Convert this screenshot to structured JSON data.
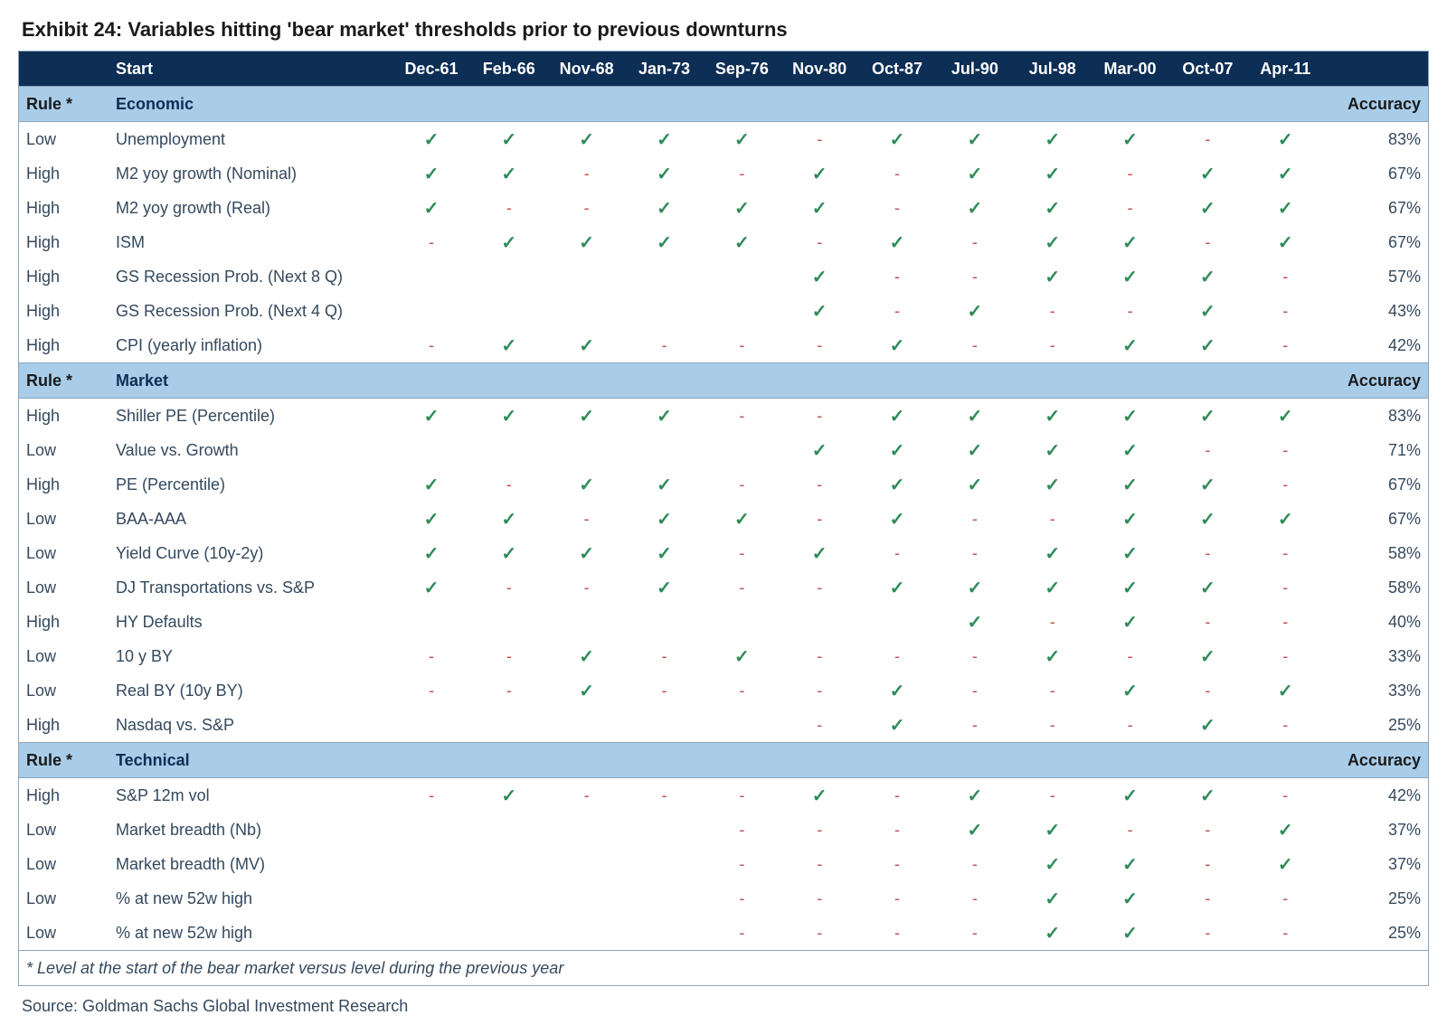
{
  "title": "Exhibit 24: Variables hitting 'bear market' thresholds prior to previous downturns",
  "footnote": "* Level at the start of the bear market versus level during the previous year",
  "source": "Source: Goldman Sachs Global Investment Research",
  "colors": {
    "header_bg": "#0d2e55",
    "header_fg": "#ffffff",
    "section_bg": "#a9cde9",
    "section_fg": "#0d2e55",
    "text": "#34495e",
    "check": "#2e8b57",
    "dash": "#c05050",
    "border": "#8aa4bd",
    "page_bg": "#ffffff"
  },
  "glyphs": {
    "check": "✓",
    "dash": "-"
  },
  "header": {
    "rule": "",
    "start": "Start",
    "dates": [
      "Dec-61",
      "Feb-66",
      "Nov-68",
      "Jan-73",
      "Sep-76",
      "Nov-80",
      "Oct-87",
      "Jul-90",
      "Jul-98",
      "Mar-00",
      "Oct-07",
      "Apr-11"
    ],
    "accuracy": ""
  },
  "section_labels": {
    "rule": "Rule *",
    "accuracy": "Accuracy"
  },
  "sections": [
    {
      "name": "Economic",
      "rows": [
        {
          "rule": "Low",
          "name": "Unemployment",
          "cells": [
            "c",
            "c",
            "c",
            "c",
            "c",
            "d",
            "c",
            "c",
            "c",
            "c",
            "d",
            "c"
          ],
          "accuracy": "83%"
        },
        {
          "rule": "High",
          "name": "M2 yoy growth (Nominal)",
          "cells": [
            "c",
            "c",
            "d",
            "c",
            "d",
            "c",
            "d",
            "c",
            "c",
            "d",
            "c",
            "c"
          ],
          "accuracy": "67%"
        },
        {
          "rule": "High",
          "name": "M2 yoy growth (Real)",
          "cells": [
            "c",
            "d",
            "d",
            "c",
            "c",
            "c",
            "d",
            "c",
            "c",
            "d",
            "c",
            "c"
          ],
          "accuracy": "67%"
        },
        {
          "rule": "High",
          "name": "ISM",
          "cells": [
            "d",
            "c",
            "c",
            "c",
            "c",
            "d",
            "c",
            "d",
            "c",
            "c",
            "d",
            "c"
          ],
          "accuracy": "67%"
        },
        {
          "rule": "High",
          "name": "GS Recession Prob. (Next 8 Q)",
          "cells": [
            "",
            "",
            "",
            "",
            "",
            "c",
            "d",
            "d",
            "c",
            "c",
            "c",
            "d"
          ],
          "accuracy": "57%"
        },
        {
          "rule": "High",
          "name": "GS Recession Prob. (Next 4 Q)",
          "cells": [
            "",
            "",
            "",
            "",
            "",
            "c",
            "d",
            "c",
            "d",
            "d",
            "c",
            "d"
          ],
          "accuracy": "43%"
        },
        {
          "rule": "High",
          "name": "CPI (yearly inflation)",
          "cells": [
            "d",
            "c",
            "c",
            "d",
            "d",
            "d",
            "c",
            "d",
            "d",
            "c",
            "c",
            "d"
          ],
          "accuracy": "42%"
        }
      ]
    },
    {
      "name": "Market",
      "rows": [
        {
          "rule": "High",
          "name": "Shiller PE (Percentile)",
          "cells": [
            "c",
            "c",
            "c",
            "c",
            "d",
            "d",
            "c",
            "c",
            "c",
            "c",
            "c",
            "c"
          ],
          "accuracy": "83%"
        },
        {
          "rule": "Low",
          "name": "Value vs. Growth",
          "cells": [
            "",
            "",
            "",
            "",
            "",
            "c",
            "c",
            "c",
            "c",
            "c",
            "d",
            "d"
          ],
          "accuracy": "71%"
        },
        {
          "rule": "High",
          "name": "PE (Percentile)",
          "cells": [
            "c",
            "d",
            "c",
            "c",
            "d",
            "d",
            "c",
            "c",
            "c",
            "c",
            "c",
            "d"
          ],
          "accuracy": "67%"
        },
        {
          "rule": "Low",
          "name": "BAA-AAA",
          "cells": [
            "c",
            "c",
            "d",
            "c",
            "c",
            "d",
            "c",
            "d",
            "d",
            "c",
            "c",
            "c"
          ],
          "accuracy": "67%"
        },
        {
          "rule": "Low",
          "name": "Yield Curve (10y-2y)",
          "cells": [
            "c",
            "c",
            "c",
            "c",
            "d",
            "c",
            "d",
            "d",
            "c",
            "c",
            "d",
            "d"
          ],
          "accuracy": "58%"
        },
        {
          "rule": "Low",
          "name": "DJ Transportations vs. S&P",
          "cells": [
            "c",
            "d",
            "d",
            "c",
            "d",
            "d",
            "c",
            "c",
            "c",
            "c",
            "c",
            "d"
          ],
          "accuracy": "58%"
        },
        {
          "rule": "High",
          "name": "HY Defaults",
          "cells": [
            "",
            "",
            "",
            "",
            "",
            "",
            "",
            "c",
            "d",
            "c",
            "d",
            "d"
          ],
          "accuracy": "40%"
        },
        {
          "rule": "Low",
          "name": "10 y BY",
          "cells": [
            "d",
            "d",
            "c",
            "d",
            "c",
            "d",
            "d",
            "d",
            "c",
            "d",
            "c",
            "d"
          ],
          "accuracy": "33%"
        },
        {
          "rule": "Low",
          "name": "Real BY (10y BY)",
          "cells": [
            "d",
            "d",
            "c",
            "d",
            "d",
            "d",
            "c",
            "d",
            "d",
            "c",
            "d",
            "c"
          ],
          "accuracy": "33%"
        },
        {
          "rule": "High",
          "name": "Nasdaq vs. S&P",
          "cells": [
            "",
            "",
            "",
            "",
            "",
            "d",
            "c",
            "d",
            "d",
            "d",
            "c",
            "d"
          ],
          "accuracy": "25%"
        }
      ]
    },
    {
      "name": "Technical",
      "rows": [
        {
          "rule": "High",
          "name": "S&P 12m vol",
          "cells": [
            "d",
            "c",
            "d",
            "d",
            "d",
            "c",
            "d",
            "c",
            "d",
            "c",
            "c",
            "d"
          ],
          "accuracy": "42%"
        },
        {
          "rule": "Low",
          "name": "Market breadth (Nb)",
          "cells": [
            "",
            "",
            "",
            "",
            "d",
            "d",
            "d",
            "c",
            "c",
            "d",
            "d",
            "c"
          ],
          "accuracy": "37%"
        },
        {
          "rule": "Low",
          "name": "Market breadth (MV)",
          "cells": [
            "",
            "",
            "",
            "",
            "d",
            "d",
            "d",
            "d",
            "c",
            "c",
            "d",
            "c"
          ],
          "accuracy": "37%"
        },
        {
          "rule": "Low",
          "name": "% at new 52w high",
          "cells": [
            "",
            "",
            "",
            "",
            "d",
            "d",
            "d",
            "d",
            "c",
            "c",
            "d",
            "d"
          ],
          "accuracy": "25%"
        },
        {
          "rule": "Low",
          "name": "% at new 52w high",
          "cells": [
            "",
            "",
            "",
            "",
            "d",
            "d",
            "d",
            "d",
            "c",
            "c",
            "d",
            "d"
          ],
          "accuracy": "25%"
        }
      ]
    }
  ]
}
